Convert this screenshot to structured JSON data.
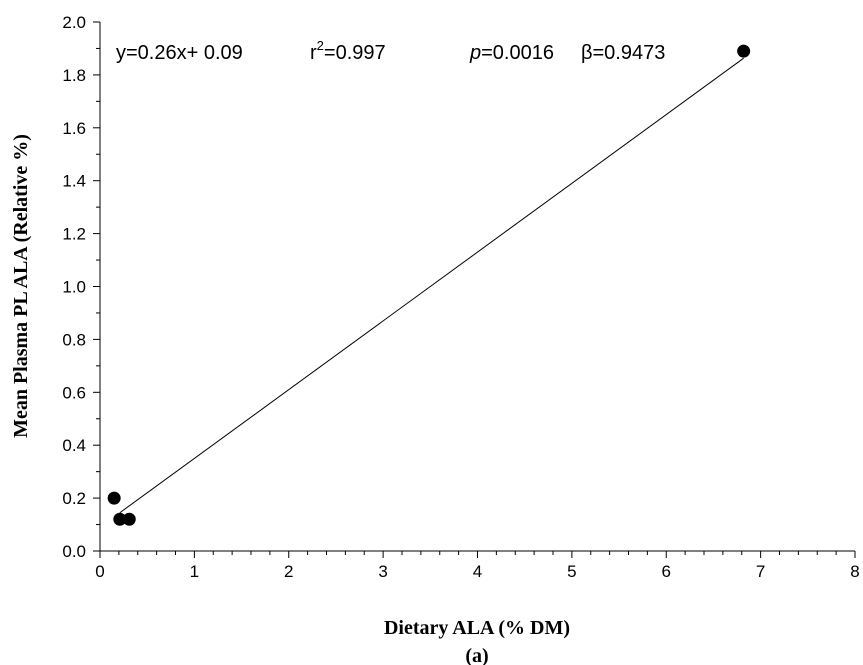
{
  "chart_data": {
    "type": "scatter",
    "title": "",
    "xlabel": "Dietary ALA (% DM)",
    "ylabel": "Mean Plasma PL ALA (Relative %)",
    "panel_label": "(a)",
    "xlim": [
      0,
      8
    ],
    "ylim": [
      0.0,
      2.0
    ],
    "x_ticks": [
      0,
      1,
      2,
      3,
      4,
      5,
      6,
      7,
      8
    ],
    "x_tick_labels": [
      "0",
      "1",
      "2",
      "3",
      "4",
      "5",
      "6",
      "7",
      "8"
    ],
    "y_ticks": [
      0.0,
      0.2,
      0.4,
      0.6,
      0.8,
      1.0,
      1.2,
      1.4,
      1.6,
      1.8,
      2.0
    ],
    "y_tick_labels": [
      "0.0",
      "0.2",
      "0.4",
      "0.6",
      "0.8",
      "1.0",
      "1.2",
      "1.4",
      "1.6",
      "1.8",
      "2.0"
    ],
    "grid": false,
    "points": [
      {
        "x": 0.15,
        "y": 0.2
      },
      {
        "x": 0.21,
        "y": 0.12
      },
      {
        "x": 0.31,
        "y": 0.12
      },
      {
        "x": 6.82,
        "y": 1.89
      }
    ],
    "regression": {
      "slope": 0.26,
      "intercept": 0.09,
      "x_start": 0.21,
      "x_end": 6.82
    },
    "annotations": {
      "equation": "y=0.26x+ 0.09",
      "r2_prefix": "r",
      "r2_sup": "2",
      "r2_value": "=0.997",
      "p_symbol": "p",
      "p_value": "=0.0016",
      "beta_text": "β=0.9473"
    }
  }
}
